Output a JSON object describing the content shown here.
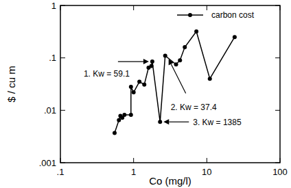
{
  "chart_data": {
    "type": "line",
    "x_label": "Co (mg/l)",
    "y_label": "$ / cu m",
    "log": true,
    "grid": false,
    "legend": "top-right",
    "x": [
      0.55,
      0.63,
      0.66,
      0.7,
      0.75,
      0.92,
      0.92,
      1.0,
      1.2,
      1.4,
      1.6,
      1.75,
      1.8,
      2.3,
      2.7,
      3.8,
      4.3,
      5,
      7.2,
      11,
      24
    ],
    "series": [
      {
        "name": "carbon cost",
        "color": "#000000",
        "marker": "circle",
        "line_style": "solid",
        "values": [
          0.0037,
          0.0065,
          0.0078,
          0.0072,
          0.0082,
          0.0082,
          0.028,
          0.022,
          0.035,
          0.031,
          0.065,
          0.07,
          0.085,
          0.006,
          0.11,
          0.075,
          0.09,
          0.16,
          0.32,
          0.04,
          0.25
        ]
      }
    ],
    "xlim": [
      0.1,
      100
    ],
    "xticks": [
      {
        "value": 0.1,
        "label": ".1"
      },
      1,
      10,
      100
    ],
    "ylim": [
      0.001,
      1
    ],
    "yticks": [
      {
        "value": 0.001,
        "label": ".001"
      },
      {
        "value": 0.01,
        "label": ".01"
      },
      {
        "value": 0.1,
        "label": ".1"
      },
      1
    ],
    "annotations": [
      {
        "text": "1. Kw = 59.1",
        "x": 1.8,
        "y": 0.085
      },
      {
        "text": "2. Kw = 37.4",
        "x": 2.7,
        "y": 0.11
      },
      {
        "text": "3. Kw = 1385",
        "x": 2.3,
        "y": 0.006
      }
    ]
  }
}
